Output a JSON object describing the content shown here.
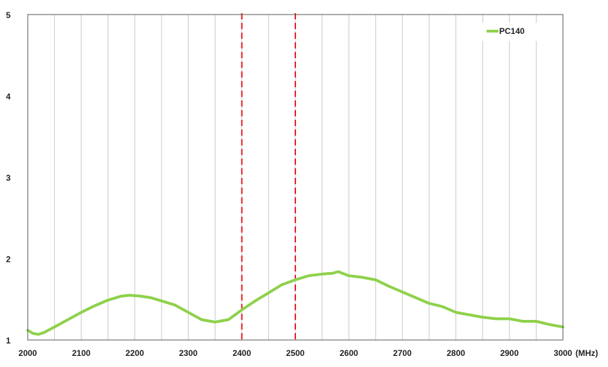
{
  "chart_data": {
    "type": "line",
    "title": "",
    "xlabel": "",
    "ylabel": "",
    "x_unit_label": "(MHz)",
    "xlim": [
      2000,
      3000
    ],
    "ylim": [
      1,
      5
    ],
    "x_ticks": [
      2000,
      2100,
      2200,
      2300,
      2400,
      2500,
      2600,
      2700,
      2800,
      2900,
      3000
    ],
    "x_tick_labels": [
      "2000",
      "2100",
      "2200",
      "2300",
      "2400",
      "2500",
      "2600",
      "2700",
      "2800",
      "2900",
      "3000"
    ],
    "y_ticks": [
      1,
      2,
      3,
      4,
      5
    ],
    "y_tick_labels": [
      "1",
      "2",
      "3",
      "4",
      "5"
    ],
    "grid": {
      "vertical": true,
      "horizontal": false
    },
    "legend": {
      "position": "top-right",
      "entries": [
        "PC140"
      ]
    },
    "reference_lines": [
      {
        "x": 2400,
        "color": "#e8202a",
        "style": "dashed"
      },
      {
        "x": 2500,
        "color": "#e8202a",
        "style": "dashed"
      }
    ],
    "series": [
      {
        "name": "PC140",
        "color": "#8ed14b",
        "x": [
          2000,
          2010,
          2020,
          2030,
          2050,
          2075,
          2100,
          2125,
          2150,
          2175,
          2190,
          2210,
          2230,
          2250,
          2275,
          2300,
          2325,
          2350,
          2375,
          2400,
          2425,
          2450,
          2475,
          2500,
          2525,
          2550,
          2570,
          2580,
          2600,
          2625,
          2650,
          2675,
          2700,
          2725,
          2750,
          2775,
          2800,
          2825,
          2850,
          2875,
          2900,
          2925,
          2950,
          2975,
          3000
        ],
        "y": [
          1.12,
          1.08,
          1.07,
          1.09,
          1.16,
          1.25,
          1.34,
          1.42,
          1.49,
          1.54,
          1.55,
          1.54,
          1.52,
          1.48,
          1.43,
          1.34,
          1.25,
          1.22,
          1.25,
          1.37,
          1.48,
          1.58,
          1.68,
          1.74,
          1.79,
          1.81,
          1.82,
          1.84,
          1.79,
          1.77,
          1.74,
          1.66,
          1.59,
          1.52,
          1.45,
          1.41,
          1.34,
          1.31,
          1.28,
          1.26,
          1.26,
          1.23,
          1.23,
          1.19,
          1.16
        ]
      }
    ]
  }
}
